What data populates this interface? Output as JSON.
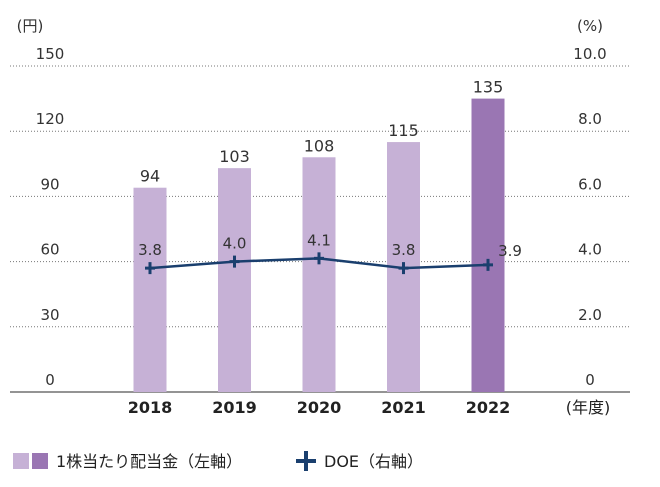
{
  "chart_data": {
    "type": "bar",
    "categories": [
      "2018",
      "2019",
      "2020",
      "2021",
      "2022"
    ],
    "x_unit": "(年度)",
    "left_axis": {
      "unit": "(円)",
      "ylim": [
        0,
        150
      ],
      "ticks": [
        "0",
        "30",
        "60",
        "90",
        "120",
        "150"
      ]
    },
    "right_axis": {
      "unit": "(%)",
      "ylim": [
        0,
        10
      ],
      "ticks": [
        "0",
        "2.0",
        "4.0",
        "6.0",
        "8.0",
        "10.0"
      ]
    },
    "series": [
      {
        "name": "1株当たり配当金（左軸）",
        "type": "bar",
        "axis": "left",
        "values": [
          94,
          103,
          108,
          115,
          135
        ],
        "labels": [
          "94",
          "103",
          "108",
          "115",
          "135"
        ],
        "colors": [
          "#c6b1d6",
          "#c6b1d6",
          "#c6b1d6",
          "#c6b1d6",
          "#9a76b3"
        ]
      },
      {
        "name": "DOE（右軸）",
        "type": "line",
        "axis": "right",
        "values": [
          3.8,
          4.0,
          4.1,
          3.8,
          3.9
        ],
        "labels": [
          "3.8",
          "4.0",
          "4.1",
          "3.8",
          "3.9"
        ],
        "color": "#1a3f6e"
      }
    ],
    "grid": true,
    "legend_position": "bottom-left",
    "legend_swatch_colors": [
      "#c6b1d6",
      "#9a76b3"
    ]
  }
}
